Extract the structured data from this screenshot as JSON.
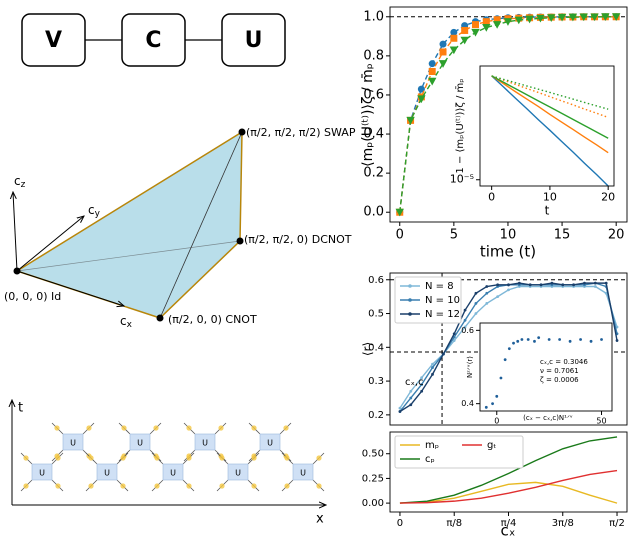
{
  "diagrams": {
    "vcu": {
      "nodes": [
        "V",
        "C",
        "U"
      ]
    },
    "weyl_chamber": {
      "axes": [
        {
          "base": "c",
          "sub": "z"
        },
        {
          "base": "c",
          "sub": "y"
        },
        {
          "base": "c",
          "sub": "x"
        }
      ],
      "vertices": [
        "(0, 0, 0) Id",
        "(π/2, 0, 0) CNOT",
        "(π/2, π/2, 0) DCNOT",
        "(π/2, π/2, π/2) SWAP"
      ]
    },
    "circuit": {
      "t_axis": "t",
      "x_axis": "x",
      "gate_label": "U"
    }
  },
  "chart_data": [
    {
      "type": "line",
      "xlabel": "time (t)",
      "ylabel": "⟨mₚ(U⁽ᵗ⁾)⟩ζ / m̄ₚ",
      "x": [
        0,
        1,
        2,
        3,
        4,
        5,
        6,
        7,
        8,
        9,
        10,
        11,
        12,
        13,
        14,
        15,
        16,
        17,
        18,
        19,
        20
      ],
      "xlim": [
        -0.9,
        21
      ],
      "xticks": [
        0,
        5,
        10,
        15,
        20
      ],
      "ylim": [
        -0.05,
        1.05
      ],
      "yticks": [
        {
          "value": 0,
          "label": "0.0"
        },
        0.2,
        0.4,
        0.6,
        0.8,
        {
          "value": 1,
          "label": "1.0"
        }
      ],
      "reference_lines": [
        {
          "axis": "y",
          "value": 1
        }
      ],
      "series": [
        {
          "color": "#1f77b4",
          "marker": "o",
          "linestyle": "dashed",
          "values": [
            0,
            0.47,
            0.63,
            0.76,
            0.86,
            0.92,
            0.955,
            0.975,
            0.985,
            0.99,
            0.995,
            0.997,
            0.998,
            0.999,
            0.999,
            1,
            1,
            1,
            1,
            1,
            1
          ]
        },
        {
          "color": "#ff7f0e",
          "marker": "s",
          "linestyle": "dashed",
          "values": [
            0,
            0.47,
            0.59,
            0.72,
            0.82,
            0.89,
            0.93,
            0.96,
            0.975,
            0.985,
            0.99,
            0.993,
            0.995,
            0.997,
            0.998,
            0.999,
            0.999,
            1,
            1,
            1,
            1
          ]
        },
        {
          "color": "#2ca02c",
          "marker": "v",
          "linestyle": "dashed",
          "values": [
            0,
            0.47,
            0.58,
            0.67,
            0.76,
            0.83,
            0.88,
            0.92,
            0.945,
            0.96,
            0.975,
            0.983,
            0.988,
            0.992,
            0.995,
            0.997,
            0.998,
            0.999,
            0.999,
            1,
            1
          ]
        }
      ]
    },
    {
      "type": "line",
      "xlabel": "t",
      "ylabel": "1 − ⟨mₚ(U⁽ᵗ⁾)⟩ζ / m̄ₚ",
      "log_y": true,
      "x": [
        0,
        2,
        4,
        6,
        8,
        10,
        12,
        14,
        16,
        18,
        20
      ],
      "xlim": [
        -2,
        21
      ],
      "xticks": [
        0,
        10,
        20
      ],
      "ylim": [
        5e-06,
        3
      ],
      "yticks": [
        {
          "value": 1e-05,
          "label": "10⁻⁵"
        }
      ],
      "series": [
        {
          "color": "#1f77b4",
          "linestyle": "solid",
          "values": [
            1,
            0.3,
            0.089,
            0.027,
            0.0079,
            0.0024,
            0.0007,
            0.00021,
            6e-05,
            1.8e-05,
            5e-06
          ]
        },
        {
          "color": "#ff7f0e",
          "linestyle": "solid",
          "values": [
            1,
            0.43,
            0.18,
            0.078,
            0.034,
            0.014,
            0.006,
            0.0026,
            0.0011,
            0.00048,
            0.0002
          ]
        },
        {
          "color": "#2ca02c",
          "linestyle": "solid",
          "values": [
            1,
            0.5,
            0.25,
            0.126,
            0.063,
            0.032,
            0.016,
            0.008,
            0.004,
            0.002,
            0.001
          ]
        },
        {
          "color": "#ff7f0e",
          "linestyle": "dotted",
          "values": [
            1,
            0.63,
            0.4,
            0.25,
            0.16,
            0.1,
            0.063,
            0.04,
            0.025,
            0.016,
            0.01
          ]
        },
        {
          "color": "#2ca02c",
          "linestyle": "dotted",
          "values": [
            1,
            0.69,
            0.48,
            0.33,
            0.23,
            0.16,
            0.11,
            0.076,
            0.052,
            0.036,
            0.025
          ]
        }
      ]
    },
    {
      "type": "line",
      "ylabel": "⟨r⟩",
      "legend": "upper left",
      "annotations": [
        "cₓ,c"
      ],
      "x": [
        0,
        0.0785,
        0.1571,
        0.2356,
        0.3142,
        0.3927,
        0.4712,
        0.5498,
        0.6283,
        0.7069,
        0.7854,
        0.8639,
        0.9425,
        1.021,
        1.0996,
        1.1781,
        1.2566,
        1.3352,
        1.4137,
        1.4923,
        1.5708
      ],
      "xlim": [
        -0.072,
        1.643
      ],
      "ylim": [
        0.17,
        0.62
      ],
      "yticks": [
        0.2,
        0.3,
        0.4,
        0.5,
        0.6
      ],
      "reference_lines": [
        {
          "axis": "y",
          "value": 0.6
        },
        {
          "axis": "y",
          "value": 0.386
        },
        {
          "axis": "x",
          "value": 0.3046
        }
      ],
      "series": [
        {
          "name": "N = 8",
          "color": "#7fb8d8",
          "marker": "o",
          "linestyle": "solid",
          "values": [
            0.22,
            0.27,
            0.31,
            0.35,
            0.38,
            0.42,
            0.46,
            0.5,
            0.53,
            0.55,
            0.57,
            0.58,
            0.58,
            0.58,
            0.58,
            0.58,
            0.58,
            0.58,
            0.58,
            0.56,
            0.46
          ]
        },
        {
          "name": "N = 10",
          "color": "#3a7fb0",
          "marker": "o",
          "linestyle": "solid",
          "values": [
            0.21,
            0.25,
            0.29,
            0.34,
            0.38,
            0.43,
            0.48,
            0.53,
            0.56,
            0.58,
            0.585,
            0.585,
            0.585,
            0.585,
            0.585,
            0.585,
            0.585,
            0.585,
            0.59,
            0.58,
            0.44
          ]
        },
        {
          "name": "N = 12",
          "color": "#1a3f6a",
          "marker": "o",
          "linestyle": "solid",
          "values": [
            0.21,
            0.23,
            0.27,
            0.32,
            0.38,
            0.44,
            0.51,
            0.56,
            0.58,
            0.585,
            0.585,
            0.59,
            0.585,
            0.585,
            0.59,
            0.585,
            0.585,
            0.59,
            0.59,
            0.59,
            0.42
          ]
        }
      ]
    },
    {
      "type": "scatter",
      "xlabel": "(cₓ − cₓ,c)N¹ᐟᵛ",
      "ylabel": "Nᶻᐟᵛ⟨r⟩",
      "annotations": [
        "cₓ,c = 0.3046",
        "ν = 0.7061",
        "ζ = 0.0006"
      ],
      "x": [
        -5,
        -2,
        0,
        2,
        4,
        6,
        8,
        10,
        12,
        15,
        18,
        20,
        25,
        30,
        35,
        40,
        45,
        50
      ],
      "xlim": [
        -8,
        55
      ],
      "xticks": [
        0,
        50
      ],
      "ylim": [
        0.38,
        0.62
      ],
      "yticks": [
        0.4,
        0.6
      ],
      "series": [
        {
          "color": "#1f5f99",
          "marker": "o",
          "values": [
            0.39,
            0.4,
            0.42,
            0.47,
            0.52,
            0.55,
            0.565,
            0.57,
            0.575,
            0.575,
            0.57,
            0.58,
            0.575,
            0.575,
            0.57,
            0.575,
            0.57,
            0.575
          ]
        }
      ]
    },
    {
      "type": "line",
      "xlabel": "cₓ",
      "legend": "upper left",
      "legend_columns": 2,
      "x": [
        0,
        0.1963,
        0.3927,
        0.589,
        0.7854,
        0.9817,
        1.1781,
        1.3744,
        1.5708
      ],
      "xlim": [
        -0.072,
        1.643
      ],
      "xticks": [
        0,
        {
          "value": 0.3927,
          "label": "π/8"
        },
        {
          "value": 0.7854,
          "label": "π/4"
        },
        {
          "value": 1.1781,
          "label": "3π/8"
        },
        {
          "value": 1.5708,
          "label": "π/2"
        }
      ],
      "ylim": [
        -0.09,
        0.72
      ],
      "yticks": [
        {
          "value": 0,
          "label": "0.00"
        },
        {
          "value": 0.25,
          "label": "0.25"
        },
        {
          "value": 0.5,
          "label": "0.50"
        }
      ],
      "series": [
        {
          "name": "mₚ",
          "color": "#e8b923",
          "linestyle": "solid",
          "values": [
            0,
            0.01,
            0.05,
            0.12,
            0.19,
            0.21,
            0.17,
            0.08,
            0
          ]
        },
        {
          "name": "cₚ",
          "color": "#1a7a1a",
          "linestyle": "solid",
          "values": [
            0,
            0.02,
            0.08,
            0.18,
            0.3,
            0.43,
            0.55,
            0.63,
            0.67
          ]
        },
        {
          "name": "gₜ",
          "color": "#e03030",
          "linestyle": "solid",
          "values": [
            0,
            0.005,
            0.02,
            0.05,
            0.1,
            0.16,
            0.23,
            0.29,
            0.33
          ]
        }
      ]
    }
  ]
}
